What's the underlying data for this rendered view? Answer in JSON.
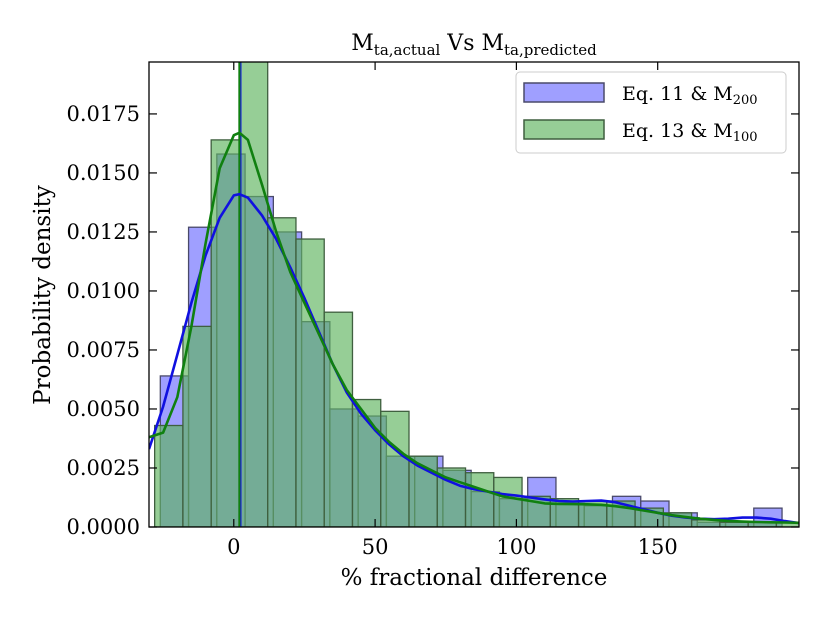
{
  "chart_data": {
    "type": "bar",
    "title": {
      "main": "M",
      "sub1": "ta,actual",
      "mid": " Vs M",
      "sub2": "ta,predicted"
    },
    "xlabel": "% fractional difference",
    "ylabel": "Probability density",
    "xlim": [
      -30,
      200
    ],
    "ylim": [
      0,
      0.0197
    ],
    "xticks": [
      0,
      50,
      100,
      150
    ],
    "xtick_labels": [
      "0",
      "50",
      "100",
      "150"
    ],
    "yticks": [
      0,
      0.0025,
      0.005,
      0.0075,
      0.01,
      0.0125,
      0.015,
      0.0175
    ],
    "ytick_labels": [
      "0.0000",
      "0.0025",
      "0.0050",
      "0.0075",
      "0.0100",
      "0.0125",
      "0.0150",
      "0.0175"
    ],
    "vline_x": 2,
    "legend_position": "top-right",
    "series": [
      {
        "name": "Eq. 11 & M200",
        "legend_main": "Eq. 11 & M",
        "legend_sub": "200",
        "fill_color": "#6b6bff",
        "edge_color": "#4a4a6a",
        "curve_color": "#1010e0",
        "bin_edges": [
          -26,
          -16,
          -6,
          4,
          14,
          24,
          34,
          44,
          54,
          64,
          74,
          84,
          94,
          104,
          114,
          124,
          134,
          144,
          154,
          164,
          174,
          184,
          194
        ],
        "values": [
          0.0064,
          0.0127,
          0.0158,
          0.014,
          0.0125,
          0.0087,
          0.005,
          0.0047,
          0.003,
          0.003,
          0.0024,
          0.0015,
          0.0012,
          0.0021,
          0.001,
          0.0009,
          0.0013,
          0.0011,
          0.0006,
          0.0002,
          0.0002,
          0.0008
        ],
        "curve": {
          "x": [
            -30,
            -25,
            -20,
            -15,
            -10,
            -5,
            0,
            2,
            5,
            10,
            15,
            20,
            25,
            30,
            35,
            40,
            45,
            50,
            55,
            60,
            65,
            70,
            75,
            80,
            85,
            90,
            95,
            100,
            105,
            110,
            115,
            120,
            125,
            130,
            135,
            140,
            145,
            150,
            155,
            160,
            165,
            170,
            175,
            180,
            185,
            190,
            195,
            200
          ],
          "y": [
            0.0033,
            0.0051,
            0.0073,
            0.0095,
            0.0115,
            0.0131,
            0.01405,
            0.0141,
            0.01395,
            0.0132,
            0.0122,
            0.011,
            0.0097,
            0.0083,
            0.0069,
            0.0057,
            0.0048,
            0.0041,
            0.0035,
            0.003,
            0.0026,
            0.0023,
            0.002,
            0.00175,
            0.0016,
            0.0015,
            0.0014,
            0.00133,
            0.00125,
            0.00117,
            0.0011,
            0.00108,
            0.0011,
            0.00112,
            0.00105,
            0.0009,
            0.00075,
            0.0006,
            0.00048,
            0.0004,
            0.00035,
            0.00033,
            0.00035,
            0.0004,
            0.0004,
            0.00035,
            0.00025,
            0.00017
          ]
        }
      },
      {
        "name": "Eq. 13 & M100",
        "legend_main": "Eq. 13 & M",
        "legend_sub": "100",
        "fill_color": "#5db35d",
        "edge_color": "#3f5f3f",
        "curve_color": "#108010",
        "bin_edges": [
          -28,
          -18,
          -8,
          2,
          12,
          22,
          32,
          42,
          52,
          62,
          72,
          82,
          92,
          102,
          112,
          122,
          132,
          142,
          152,
          162,
          172,
          182,
          192,
          202
        ],
        "values": [
          0.0043,
          0.0085,
          0.0164,
          0.02,
          0.0131,
          0.0122,
          0.0091,
          0.0054,
          0.0049,
          0.003,
          0.0025,
          0.0023,
          0.0021,
          0.0013,
          0.0012,
          0.0011,
          0.0011,
          0.0008,
          0.0006,
          0.0003,
          0.0002,
          0.0002,
          0.0002
        ],
        "curve": {
          "x": [
            -30,
            -25,
            -20,
            -15,
            -10,
            -5,
            0,
            2,
            5,
            10,
            15,
            20,
            25,
            30,
            35,
            40,
            45,
            50,
            55,
            60,
            65,
            70,
            75,
            80,
            85,
            90,
            95,
            100,
            105,
            110,
            115,
            120,
            125,
            130,
            135,
            140,
            145,
            150,
            155,
            160,
            165,
            170,
            175,
            180,
            185,
            190,
            195,
            200
          ],
          "y": [
            0.0038,
            0.004,
            0.0055,
            0.0085,
            0.012,
            0.0152,
            0.0166,
            0.0167,
            0.0164,
            0.0145,
            0.0125,
            0.0108,
            0.0095,
            0.0082,
            0.0069,
            0.0058,
            0.005,
            0.0042,
            0.0036,
            0.0031,
            0.0027,
            0.0024,
            0.0021,
            0.0019,
            0.0017,
            0.0015,
            0.0013,
            0.0012,
            0.0011,
            0.001,
            0.00098,
            0.00097,
            0.00096,
            0.00094,
            0.00088,
            0.0008,
            0.0007,
            0.0006,
            0.0005,
            0.00042,
            0.00035,
            0.0003,
            0.00026,
            0.00023,
            0.00021,
            0.0002,
            0.00019,
            0.00018
          ]
        }
      }
    ]
  }
}
